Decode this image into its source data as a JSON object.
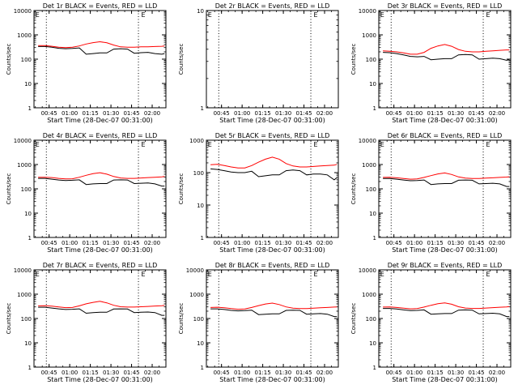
{
  "page": {
    "background": "#ffffff"
  },
  "style": {
    "events_color": "#000000",
    "lld_color": "#ff0000",
    "axis_color": "#000000"
  },
  "common": {
    "ylabel": "Counts/sec",
    "xlabel": "Start Time (28-Dec-07 00:31:00)",
    "xticks": [
      "00:45",
      "01:00",
      "01:15",
      "01:30",
      "01:45",
      "02:00"
    ],
    "yticks": [
      "1",
      "10",
      "100",
      "1000",
      "10000"
    ]
  },
  "chart_data": [
    {
      "type": "line",
      "title": "Det 1r BLACK = Events, RED = LLD",
      "xlabel": "Start Time (28-Dec-07 00:31:00)",
      "ylabel": "Counts/sec",
      "x": [
        "00:37",
        "00:42",
        "00:47",
        "00:52",
        "00:57",
        "01:02",
        "01:07",
        "01:12",
        "01:17",
        "01:22",
        "01:27",
        "01:32",
        "01:37",
        "01:42",
        "01:47",
        "01:52",
        "01:57",
        "02:02",
        "02:07",
        "02:09"
      ],
      "x_range": [
        "00:34",
        "02:10"
      ],
      "ylim": [
        1,
        10000
      ],
      "yscale": "log",
      "series": [
        {
          "name": "Events",
          "color": "#000000",
          "values": [
            330,
            330,
            310,
            280,
            270,
            275,
            290,
            160,
            170,
            180,
            180,
            260,
            270,
            260,
            175,
            185,
            190,
            170,
            160,
            170
          ]
        },
        {
          "name": "LLD",
          "color": "#ff0000",
          "values": [
            360,
            360,
            340,
            310,
            300,
            310,
            350,
            420,
            480,
            520,
            470,
            380,
            320,
            310,
            310,
            320,
            320,
            330,
            340,
            350
          ]
        }
      ],
      "annotations": [
        "E",
        "E"
      ]
    },
    {
      "type": "line",
      "title": "Det 2r BLACK = Events, RED = LLD",
      "xlabel": "Start Time (28-Dec-07 00:31:00)",
      "ylabel": "Counts/sec",
      "x_range": [
        "00:34",
        "02:10"
      ],
      "ylim": [
        1,
        10
      ],
      "yscale": "log",
      "series": [],
      "annotations": [
        "E",
        "E"
      ]
    },
    {
      "type": "line",
      "title": "Det 3r BLACK = Events, RED = LLD",
      "xlabel": "Start Time (28-Dec-07 00:31:00)",
      "ylabel": "Counts/sec",
      "x": [
        "00:37",
        "00:42",
        "00:47",
        "00:52",
        "00:57",
        "01:02",
        "01:07",
        "01:12",
        "01:17",
        "01:22",
        "01:27",
        "01:32",
        "01:37",
        "01:42",
        "01:47",
        "01:52",
        "01:57",
        "02:02",
        "02:07",
        "02:09"
      ],
      "x_range": [
        "00:34",
        "02:10"
      ],
      "ylim": [
        1,
        10000
      ],
      "yscale": "log",
      "series": [
        {
          "name": "Events",
          "color": "#000000",
          "values": [
            190,
            185,
            170,
            150,
            130,
            125,
            130,
            95,
            100,
            105,
            105,
            150,
            155,
            150,
            100,
            105,
            110,
            105,
            90,
            95
          ]
        },
        {
          "name": "LLD",
          "color": "#ff0000",
          "values": [
            220,
            210,
            200,
            180,
            160,
            160,
            190,
            280,
            350,
            400,
            340,
            250,
            210,
            200,
            200,
            210,
            220,
            230,
            240,
            240
          ]
        }
      ],
      "annotations": [
        "E",
        "E"
      ]
    },
    {
      "type": "line",
      "title": "Det 4r BLACK = Events, RED = LLD",
      "xlabel": "Start Time (28-Dec-07 00:31:00)",
      "ylabel": "Counts/sec",
      "x": [
        "00:37",
        "00:42",
        "00:47",
        "00:52",
        "00:57",
        "01:02",
        "01:07",
        "01:12",
        "01:17",
        "01:22",
        "01:27",
        "01:32",
        "01:37",
        "01:42",
        "01:47",
        "01:52",
        "01:57",
        "02:02",
        "02:07",
        "02:09"
      ],
      "x_range": [
        "00:34",
        "02:10"
      ],
      "ylim": [
        1,
        10000
      ],
      "yscale": "log",
      "series": [
        {
          "name": "Events",
          "color": "#000000",
          "values": [
            270,
            270,
            250,
            230,
            220,
            225,
            235,
            150,
            160,
            165,
            165,
            230,
            235,
            230,
            165,
            170,
            175,
            160,
            130,
            130
          ]
        },
        {
          "name": "LLD",
          "color": "#ff0000",
          "values": [
            300,
            300,
            290,
            270,
            255,
            260,
            300,
            360,
            420,
            460,
            400,
            320,
            280,
            270,
            270,
            280,
            290,
            300,
            310,
            320
          ]
        }
      ],
      "annotations": [
        "E",
        "E"
      ]
    },
    {
      "type": "line",
      "title": "Det 5r BLACK = Events, RED = LLD",
      "xlabel": "Start Time (28-Dec-07 00:31:00)",
      "ylabel": "Counts/sec",
      "x": [
        "00:37",
        "00:42",
        "00:47",
        "00:52",
        "00:57",
        "01:02",
        "01:07",
        "01:12",
        "01:17",
        "01:22",
        "01:27",
        "01:32",
        "01:37",
        "01:42",
        "01:47",
        "01:52",
        "01:57",
        "02:02",
        "02:07",
        "02:09"
      ],
      "x_range": [
        "00:34",
        "02:10"
      ],
      "ylim": [
        1,
        1000
      ],
      "yscale": "log",
      "series": [
        {
          "name": "Events",
          "color": "#000000",
          "values": [
            130,
            125,
            115,
            105,
            100,
            100,
            110,
            75,
            80,
            85,
            85,
            115,
            120,
            115,
            85,
            90,
            90,
            85,
            60,
            70
          ]
        },
        {
          "name": "LLD",
          "color": "#ff0000",
          "values": [
            175,
            180,
            165,
            150,
            140,
            140,
            165,
            210,
            260,
            300,
            260,
            190,
            160,
            150,
            150,
            155,
            160,
            165,
            170,
            180
          ]
        }
      ],
      "annotations": [
        "E",
        "E"
      ]
    },
    {
      "type": "line",
      "title": "Det 6r BLACK = Events, RED = LLD",
      "xlabel": "Start Time (28-Dec-07 00:31:00)",
      "ylabel": "Counts/sec",
      "x": [
        "00:37",
        "00:42",
        "00:47",
        "00:52",
        "00:57",
        "01:02",
        "01:07",
        "01:12",
        "01:17",
        "01:22",
        "01:27",
        "01:32",
        "01:37",
        "01:42",
        "01:47",
        "01:52",
        "01:57",
        "02:02",
        "02:07",
        "02:09"
      ],
      "x_range": [
        "00:34",
        "02:10"
      ],
      "ylim": [
        1,
        10000
      ],
      "yscale": "log",
      "series": [
        {
          "name": "Events",
          "color": "#000000",
          "values": [
            265,
            265,
            250,
            230,
            215,
            220,
            230,
            150,
            160,
            165,
            165,
            225,
            230,
            225,
            160,
            165,
            170,
            160,
            125,
            125
          ]
        },
        {
          "name": "LLD",
          "color": "#ff0000",
          "values": [
            295,
            300,
            285,
            265,
            250,
            255,
            295,
            350,
            410,
            450,
            390,
            310,
            275,
            265,
            265,
            275,
            285,
            295,
            305,
            315
          ]
        }
      ],
      "annotations": [
        "E",
        "E"
      ]
    },
    {
      "type": "line",
      "title": "Det 7r BLACK = Events, RED = LLD",
      "xlabel": "Start Time (28-Dec-07 00:31:00)",
      "ylabel": "Counts/sec",
      "x": [
        "00:37",
        "00:42",
        "00:47",
        "00:52",
        "00:57",
        "01:02",
        "01:07",
        "01:12",
        "01:17",
        "01:22",
        "01:27",
        "01:32",
        "01:37",
        "01:42",
        "01:47",
        "01:52",
        "01:57",
        "02:02",
        "02:07",
        "02:09"
      ],
      "x_range": [
        "00:34",
        "02:10"
      ],
      "ylim": [
        1,
        10000
      ],
      "yscale": "log",
      "series": [
        {
          "name": "Events",
          "color": "#000000",
          "values": [
            290,
            290,
            270,
            250,
            235,
            240,
            250,
            165,
            175,
            180,
            180,
            245,
            250,
            245,
            175,
            180,
            185,
            175,
            135,
            135
          ]
        },
        {
          "name": "LLD",
          "color": "#ff0000",
          "values": [
            330,
            335,
            320,
            300,
            280,
            285,
            330,
            400,
            460,
            510,
            440,
            350,
            305,
            295,
            295,
            305,
            315,
            325,
            335,
            345
          ]
        }
      ],
      "annotations": [
        "E",
        "E"
      ]
    },
    {
      "type": "line",
      "title": "Det 8r BLACK = Events, RED = LLD",
      "xlabel": "Start Time (28-Dec-07 00:31:00)",
      "ylabel": "Counts/sec",
      "x": [
        "00:37",
        "00:42",
        "00:47",
        "00:52",
        "00:57",
        "01:02",
        "01:07",
        "01:12",
        "01:17",
        "01:22",
        "01:27",
        "01:32",
        "01:37",
        "01:42",
        "01:47",
        "01:52",
        "01:57",
        "02:02",
        "02:07",
        "02:09"
      ],
      "x_range": [
        "00:34",
        "02:10"
      ],
      "ylim": [
        1,
        10000
      ],
      "yscale": "log",
      "series": [
        {
          "name": "Events",
          "color": "#000000",
          "values": [
            250,
            250,
            235,
            215,
            205,
            210,
            220,
            145,
            150,
            155,
            155,
            215,
            220,
            215,
            150,
            155,
            160,
            150,
            120,
            120
          ]
        },
        {
          "name": "LLD",
          "color": "#ff0000",
          "values": [
            285,
            290,
            275,
            255,
            240,
            245,
            285,
            340,
            395,
            430,
            375,
            300,
            265,
            255,
            255,
            265,
            275,
            285,
            295,
            300
          ]
        }
      ],
      "annotations": [
        "E",
        "E"
      ]
    },
    {
      "type": "line",
      "title": "Det 9r BLACK = Events, RED = LLD",
      "xlabel": "Start Time (28-Dec-07 00:31:00)",
      "ylabel": "Counts/sec",
      "x": [
        "00:37",
        "00:42",
        "00:47",
        "00:52",
        "00:57",
        "01:02",
        "01:07",
        "01:12",
        "01:17",
        "01:22",
        "01:27",
        "01:32",
        "01:37",
        "01:42",
        "01:47",
        "01:52",
        "01:57",
        "02:02",
        "02:07",
        "02:09"
      ],
      "x_range": [
        "00:34",
        "02:10"
      ],
      "ylim": [
        1,
        10000
      ],
      "yscale": "log",
      "series": [
        {
          "name": "Events",
          "color": "#000000",
          "values": [
            260,
            260,
            245,
            225,
            210,
            215,
            225,
            150,
            155,
            160,
            160,
            220,
            225,
            220,
            155,
            160,
            165,
            155,
            120,
            120
          ]
        },
        {
          "name": "LLD",
          "color": "#ff0000",
          "values": [
            295,
            300,
            285,
            265,
            250,
            255,
            295,
            350,
            405,
            440,
            385,
            305,
            270,
            260,
            260,
            270,
            280,
            290,
            300,
            310
          ]
        }
      ],
      "annotations": [
        "E",
        "E"
      ]
    }
  ]
}
